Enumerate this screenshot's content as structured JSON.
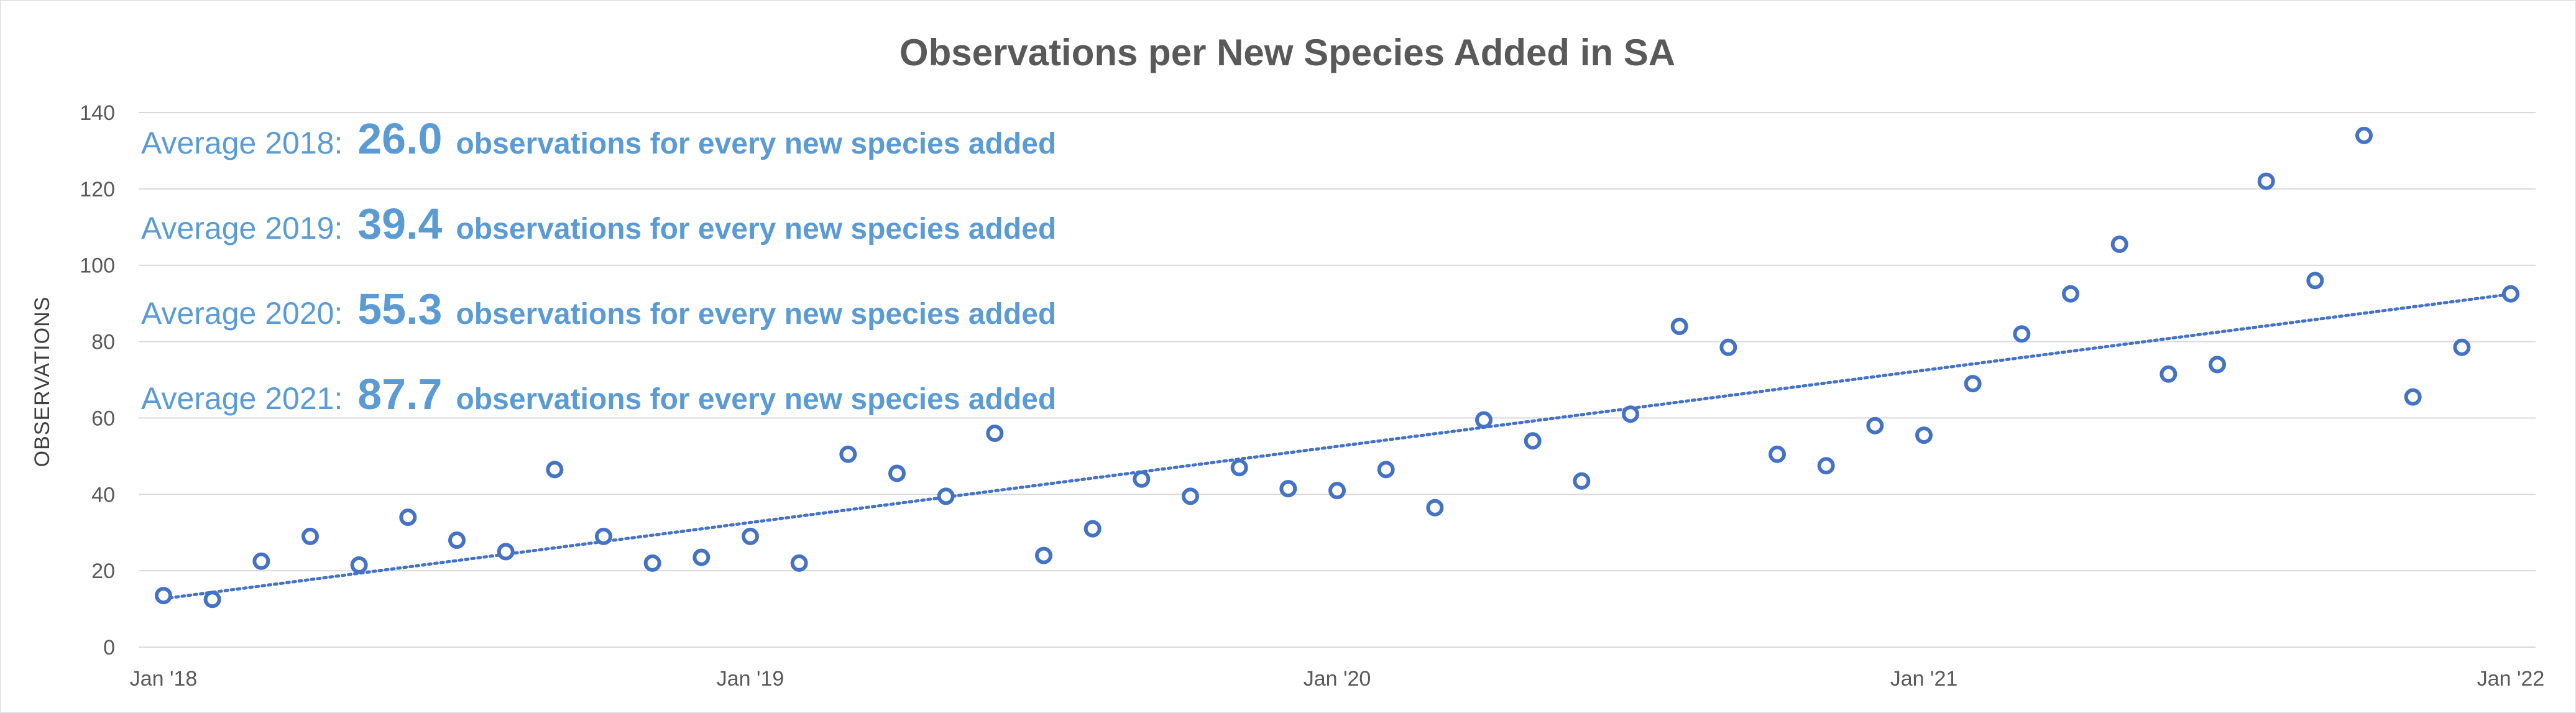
{
  "chart_data": {
    "type": "scatter",
    "title": "Observations per New Species Added in SA",
    "ylabel": "OBSERVATIONS",
    "xlabel": "",
    "ylim": [
      0,
      140
    ],
    "yticks": [
      0,
      20,
      40,
      60,
      80,
      100,
      120,
      140
    ],
    "xlim": [
      "2018-01",
      "2022-01"
    ],
    "xticks": [
      {
        "label": "Jan '18",
        "date": "2018-01"
      },
      {
        "label": "Jan '19",
        "date": "2019-01"
      },
      {
        "label": "Jan '20",
        "date": "2020-01"
      },
      {
        "label": "Jan '21",
        "date": "2021-01"
      },
      {
        "label": "Jan '22",
        "date": "2022-01"
      }
    ],
    "grid": "horizontal",
    "marker_color": "#4472c4",
    "trendline": {
      "type": "linear",
      "style": "dotted",
      "color": "#4472c4"
    },
    "series": [
      {
        "points": [
          {
            "x": "2018-01",
            "y": 13.5
          },
          {
            "x": "2018-02",
            "y": 12.5
          },
          {
            "x": "2018-03",
            "y": 22.5
          },
          {
            "x": "2018-04",
            "y": 29
          },
          {
            "x": "2018-05",
            "y": 21.5
          },
          {
            "x": "2018-06",
            "y": 34
          },
          {
            "x": "2018-07",
            "y": 28
          },
          {
            "x": "2018-08",
            "y": 25
          },
          {
            "x": "2018-09",
            "y": 46.5
          },
          {
            "x": "2018-10",
            "y": 29
          },
          {
            "x": "2018-11",
            "y": 22
          },
          {
            "x": "2018-12",
            "y": 23.5
          },
          {
            "x": "2019-01",
            "y": 29
          },
          {
            "x": "2019-02",
            "y": 22
          },
          {
            "x": "2019-03",
            "y": 50.5
          },
          {
            "x": "2019-04",
            "y": 45.5
          },
          {
            "x": "2019-05",
            "y": 39.5
          },
          {
            "x": "2019-06",
            "y": 56
          },
          {
            "x": "2019-07",
            "y": 24
          },
          {
            "x": "2019-08",
            "y": 31
          },
          {
            "x": "2019-09",
            "y": 44
          },
          {
            "x": "2019-10",
            "y": 39.5
          },
          {
            "x": "2019-11",
            "y": 47
          },
          {
            "x": "2019-12",
            "y": 41.5
          },
          {
            "x": "2020-01",
            "y": 41
          },
          {
            "x": "2020-02",
            "y": 46.5
          },
          {
            "x": "2020-03",
            "y": 36.5
          },
          {
            "x": "2020-04",
            "y": 59.5
          },
          {
            "x": "2020-05",
            "y": 54
          },
          {
            "x": "2020-06",
            "y": 43.5
          },
          {
            "x": "2020-07",
            "y": 61
          },
          {
            "x": "2020-08",
            "y": 84
          },
          {
            "x": "2020-09",
            "y": 78.5
          },
          {
            "x": "2020-10",
            "y": 50.5
          },
          {
            "x": "2020-11",
            "y": 47.5
          },
          {
            "x": "2020-12",
            "y": 58
          },
          {
            "x": "2021-01",
            "y": 55.5
          },
          {
            "x": "2021-02",
            "y": 69
          },
          {
            "x": "2021-03",
            "y": 82
          },
          {
            "x": "2021-04",
            "y": 92.5
          },
          {
            "x": "2021-05",
            "y": 105.5
          },
          {
            "x": "2021-06",
            "y": 71.5
          },
          {
            "x": "2021-07",
            "y": 74
          },
          {
            "x": "2021-08",
            "y": 122
          },
          {
            "x": "2021-09",
            "y": 96
          },
          {
            "x": "2021-10",
            "y": 134
          },
          {
            "x": "2021-11",
            "y": 65.5
          },
          {
            "x": "2021-12",
            "y": 78.5
          },
          {
            "x": "2022-01",
            "y": 92.5
          }
        ]
      }
    ],
    "annotations": [
      {
        "prefix": "Average 2018:",
        "value": "26.0",
        "suffix": "observations for every new species added"
      },
      {
        "prefix": "Average 2019:",
        "value": "39.4",
        "suffix": "observations for every new species added"
      },
      {
        "prefix": "Average 2020:",
        "value": "55.3",
        "suffix": "observations for every new species added"
      },
      {
        "prefix": "Average 2021:",
        "value": "87.7",
        "suffix": "observations for every new species added"
      }
    ]
  }
}
